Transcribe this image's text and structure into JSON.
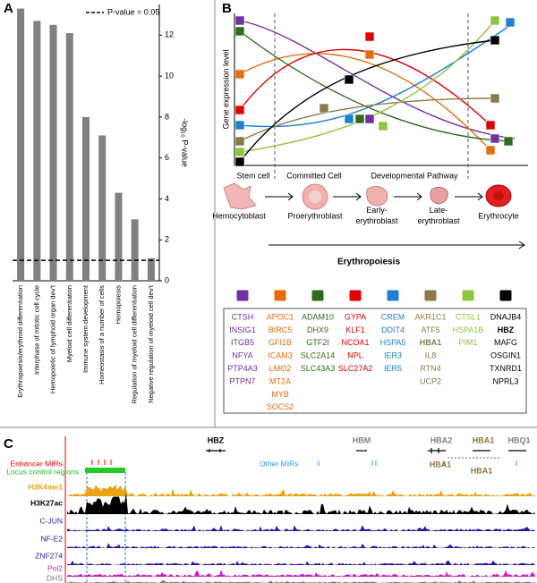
{
  "panel_labels": [
    "A",
    "B",
    "C"
  ],
  "chart_data": {
    "type": "bar",
    "y_label": "-log₁₀ P-value",
    "color": "#808080",
    "categories": [
      "Erythropoiesis/erythroid differentiation",
      "Interphase of mitotic cell cycle",
      "Hemopoietic of lymphoid organ dev't",
      "Myeloid cell differentiation",
      "Immune system development",
      "Homeostasis of a number of cells",
      "Hemopoiesis",
      "Regulation of myeloid cell differentiation",
      "Negative regulation of myeloid cell dev't"
    ],
    "values": [
      13.3,
      12.7,
      12.5,
      12.1,
      8.0,
      7.1,
      4.3,
      3.0,
      1.1
    ],
    "ylim": [
      0,
      13.5
    ],
    "yticks": [
      0,
      2,
      4,
      6,
      8,
      10,
      12
    ],
    "threshold": {
      "label": "P-value = 0.05",
      "value": 1.0
    }
  },
  "panel_b": {
    "y_label": "Gene expression level",
    "stages": [
      "Stem cell",
      "Committed Cell",
      "Developmental Pathway"
    ],
    "cells": [
      "Hemocytoblast",
      "Proerythroblast",
      "Early-\nerythroblast",
      "Late-\nerythroblast",
      "Erythrocyte"
    ],
    "process": "Erythropoiesis",
    "columns": [
      {
        "color": "#7030a0",
        "genes": [
          "CTSH",
          "INSIG1",
          "ITGB5",
          "NFYA",
          "PTP4A3",
          "PTPN7"
        ]
      },
      {
        "color": "#e46c0a",
        "genes": [
          "APOC1",
          "BIRC5",
          "GFI1B",
          "ICAM3",
          "LMO2",
          "MT2A",
          "MYB",
          "SOCS2"
        ]
      },
      {
        "color": "#2e6b1f",
        "genes": [
          "ADAM10",
          "DHX9",
          "GTF2I",
          "SLC2A14",
          "SLC43A3"
        ]
      },
      {
        "color": "#e00000",
        "genes": [
          "GYPA",
          "KLF1",
          "NCOA1",
          "NPL",
          "SLC27A2"
        ]
      },
      {
        "color": "#1f7fd0",
        "genes": [
          "CREM",
          "DDIT4",
          "HSPA5",
          "IER3",
          "IER5"
        ]
      },
      {
        "color": "#8a7a48",
        "genes": [
          "AKR1C1",
          "ATF5",
          "HBA1",
          "IL8",
          "RTN4",
          "UCP2"
        ],
        "bold": "HBA1"
      },
      {
        "color": "#8cc63f",
        "genes": [
          "CTSL1",
          "HSPA1B",
          "PIM1"
        ]
      },
      {
        "color": "#000000",
        "genes": [
          "DNAJB4",
          "HBZ",
          "MAFG",
          "OSGIN1",
          "TXNRD1",
          "NPRL3"
        ],
        "bold": "HBZ"
      }
    ]
  },
  "panel_c": {
    "genes": [
      {
        "name": "HBZ",
        "color": "#000000"
      },
      {
        "name": "HBM",
        "color": "#808080"
      },
      {
        "name": "HBA2",
        "color": "#808080"
      },
      {
        "name": "HBA1",
        "color": "#8a7a3a"
      },
      {
        "name": "HBQ1",
        "color": "#808080"
      },
      {
        "name": "HBA1",
        "color": "#8a7a3a"
      },
      {
        "name": "HBA1",
        "color": "#8a7a3a"
      }
    ],
    "enhancer": "Enhancer MIRs",
    "lcr": "Locus control regions",
    "other": "Other MIRs",
    "tracks": [
      {
        "name": "H3K4me1",
        "color": "#e8a317"
      },
      {
        "name": "H3K27ac",
        "color": "#000000"
      },
      {
        "name": "C-JUN",
        "color": "#2a1a9a"
      },
      {
        "name": "NF-E2",
        "color": "#2a1a9a"
      },
      {
        "name": "ZNF274",
        "color": "#2a1a9a"
      },
      {
        "name": "Pol2",
        "color": "#cc22cc"
      },
      {
        "name": "DHS",
        "color": "#777777"
      }
    ]
  }
}
